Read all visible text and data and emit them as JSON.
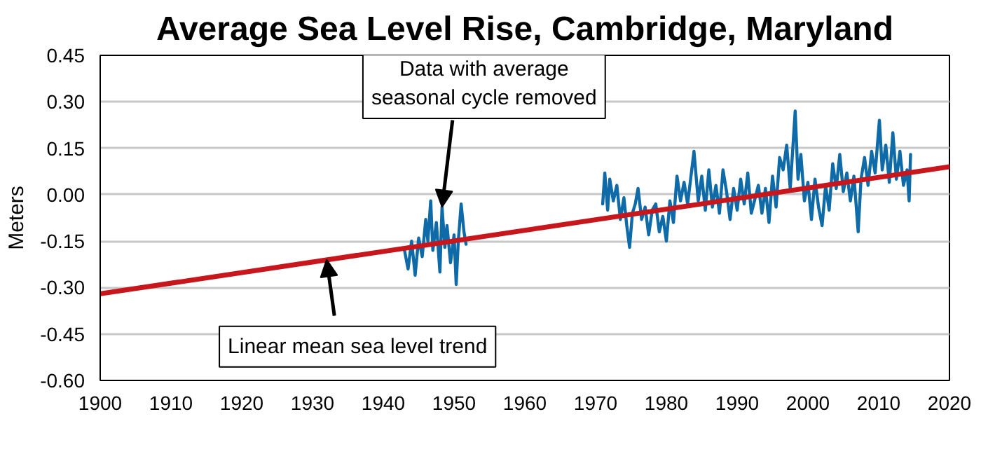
{
  "chart_data": {
    "type": "line",
    "title": "Average Sea Level Rise, Cambridge, Maryland",
    "ylabel": "Meters",
    "xlim": [
      1900,
      2020
    ],
    "xticks": [
      1900,
      1910,
      1920,
      1930,
      1940,
      1950,
      1960,
      1970,
      1980,
      1990,
      2000,
      2010,
      2020
    ],
    "ylim": [
      -0.6,
      0.45
    ],
    "yticks": [
      {
        "value": -0.6,
        "label": "-0.60"
      },
      {
        "value": -0.45,
        "label": "-0.45"
      },
      {
        "value": -0.3,
        "label": "-0.30"
      },
      {
        "value": -0.15,
        "label": "-0.15"
      },
      {
        "value": 0,
        "label": "0.00"
      },
      {
        "value": 0.15,
        "label": "0.15"
      },
      {
        "value": 0.3,
        "label": "0.30"
      },
      {
        "value": 0.45,
        "label": "0.45"
      }
    ],
    "grid": "y",
    "series": [
      {
        "color": "#0f6aa8",
        "x": [
          1943,
          1943.5,
          1944,
          1944.5,
          1945,
          1945.5,
          1946,
          1946.3,
          1946.7,
          1947,
          1947.5,
          1948,
          1948.3,
          1948.7,
          1949,
          1949.5,
          1950,
          1950.3,
          1950.6,
          1951,
          1951.4,
          1951.7,
          1960,
          1971,
          1971.3,
          1971.7,
          1972,
          1972.5,
          1973,
          1973.5,
          1974,
          1974.4,
          1974.8,
          1975.2,
          1975.6,
          1976,
          1976.5,
          1977,
          1977.5,
          1978,
          1978.5,
          1979,
          1979.5,
          1980,
          1980.5,
          1981,
          1981.5,
          1982,
          1982.5,
          1983,
          1983.9,
          1984.5,
          1985,
          1985.5,
          1986,
          1986.5,
          1987,
          1987.5,
          1988,
          1988.5,
          1989,
          1989.5,
          1990,
          1990.5,
          1991,
          1991.5,
          1992,
          1993,
          1993.5,
          1994,
          1994.5,
          1995,
          1995.5,
          1996,
          1996.5,
          1997,
          1997.5,
          1998.2,
          1998.6,
          1999,
          1999.5,
          2000,
          2000.5,
          2001,
          2001.5,
          2002,
          2002.5,
          2003,
          2003.5,
          2004,
          2004.5,
          2005,
          2005.5,
          2006,
          2006.5,
          2007.1,
          2007.5,
          2008,
          2008.5,
          2009,
          2009.5,
          2010.1,
          2010.5,
          2011,
          2011.5,
          2012,
          2012.5,
          2013,
          2013.5,
          2014,
          2014.3,
          2014.5
        ],
        "values": [
          -0.18,
          -0.24,
          -0.15,
          -0.26,
          -0.14,
          -0.2,
          -0.08,
          -0.15,
          -0.02,
          -0.18,
          -0.09,
          -0.25,
          -0.04,
          -0.17,
          -0.1,
          -0.22,
          -0.13,
          -0.29,
          -0.15,
          -0.03,
          -0.12,
          -0.16,
          null,
          -0.03,
          0.07,
          -0.05,
          0.05,
          -0.02,
          0.03,
          -0.08,
          -0.01,
          -0.1,
          -0.17,
          -0.06,
          -0.03,
          0.02,
          -0.08,
          -0.04,
          -0.13,
          -0.05,
          -0.03,
          -0.12,
          -0.07,
          -0.15,
          -0.02,
          -0.09,
          0.06,
          -0.02,
          0.04,
          -0.03,
          0.14,
          -0.02,
          0.06,
          -0.05,
          0.08,
          -0.04,
          0.03,
          -0.06,
          0.08,
          0.01,
          -0.08,
          0.02,
          -0.05,
          0.05,
          -0.03,
          0.07,
          -0.06,
          0.03,
          -0.06,
          0.02,
          -0.09,
          0.06,
          -0.04,
          0.12,
          0.08,
          0.16,
          0.02,
          0.27,
          0.05,
          0.13,
          -0.02,
          0.04,
          -0.08,
          0.05,
          -0.04,
          -0.1,
          0.03,
          -0.05,
          0.1,
          0.02,
          0.13,
          0.01,
          0.07,
          -0.02,
          0.06,
          -0.12,
          0.05,
          0.12,
          0.03,
          0.14,
          0.07,
          0.24,
          0.08,
          0.16,
          0.04,
          0.2,
          0.05,
          0.14,
          0.03,
          0.08,
          -0.02,
          0.13
        ]
      },
      {
        "color": "#c8161d",
        "x": [
          1900,
          2020
        ],
        "values": [
          -0.32,
          0.09
        ]
      }
    ],
    "annotations": [
      {
        "text": "Data with average\nseasonal cycle removed",
        "x": 1948.3,
        "y": -0.04
      },
      {
        "text": "Linear mean sea level trend",
        "x": 1932,
        "y": -0.21
      }
    ]
  }
}
